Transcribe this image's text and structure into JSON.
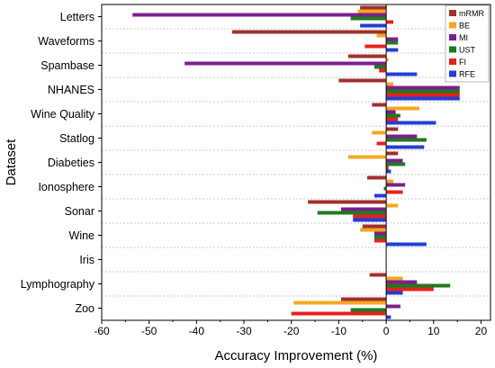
{
  "chart_data": {
    "type": "bar",
    "orientation": "horizontal",
    "xlabel": "Accuracy Improvement (%)",
    "ylabel": "Dataset",
    "xlim": [
      -60,
      22
    ],
    "xticks": [
      -60,
      -50,
      -40,
      -30,
      -20,
      -10,
      0,
      10,
      20
    ],
    "grid": "horizontal dashed",
    "legend_position": "top-right",
    "categories": [
      "Letters",
      "Waveforms",
      "Spambase",
      "NHANES",
      "Wine Quality",
      "Statlog",
      "Diabeties",
      "Ionosphere",
      "Sonar",
      "Wine",
      "Iris",
      "Lymphography",
      "Zoo"
    ],
    "series": [
      {
        "name": "mRMR",
        "color": "#a0302c",
        "values": [
          -5.5,
          -32.5,
          -8.0,
          -10.0,
          -3.0,
          2.5,
          2.5,
          -4.0,
          -16.5,
          -5.0,
          0,
          -3.5,
          -9.5
        ]
      },
      {
        "name": "BE",
        "color": "#f5a623",
        "values": [
          -6.0,
          -2.0,
          0.5,
          1.5,
          7.0,
          -3.0,
          -8.0,
          1.5,
          2.5,
          -5.5,
          0,
          3.5,
          -19.5
        ]
      },
      {
        "name": "MI",
        "color": "#7b1f8e",
        "values": [
          -53.5,
          2.5,
          -42.5,
          15.5,
          2.0,
          6.5,
          3.5,
          4.0,
          -9.5,
          -2.5,
          0,
          6.5,
          3.0
        ]
      },
      {
        "name": "UST",
        "color": "#1f7a1f",
        "values": [
          -7.5,
          2.5,
          -2.5,
          15.5,
          3.0,
          8.5,
          4.0,
          -0.5,
          -14.5,
          -2.5,
          0,
          13.5,
          -7.5
        ]
      },
      {
        "name": "FI",
        "color": "#e8201e",
        "values": [
          1.5,
          -4.5,
          -1.5,
          15.5,
          2.5,
          -2.0,
          0.5,
          3.5,
          -7.0,
          -2.5,
          0,
          10.0,
          -20.0
        ]
      },
      {
        "name": "RFE",
        "color": "#1f3fd6",
        "values": [
          -5.5,
          2.5,
          6.5,
          15.5,
          10.5,
          8.0,
          1.0,
          -2.5,
          -7.0,
          8.5,
          0,
          3.5,
          1.0
        ]
      }
    ]
  }
}
